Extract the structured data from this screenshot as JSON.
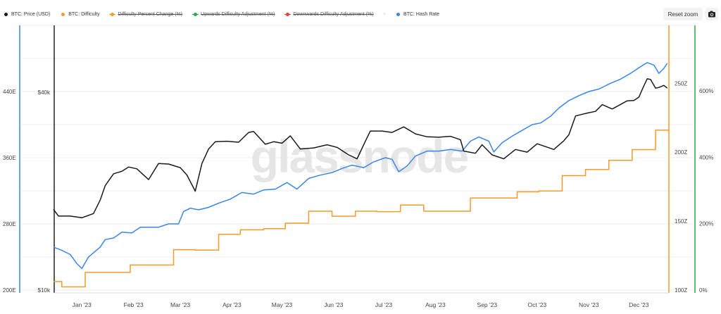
{
  "legend": [
    {
      "label": "BTC: Price (USD)",
      "color": "#1a1a1a",
      "style": "dot",
      "enabled": true
    },
    {
      "label": "BTC: Difficulty",
      "color": "#f59a2b",
      "style": "dot",
      "enabled": true
    },
    {
      "label": "Difficulty Percent Change (%)",
      "color": "#f59a2b",
      "style": "line-dot",
      "enabled": false
    },
    {
      "label": "Upwards Difficulty Adjustment (%)",
      "color": "#2aa84a",
      "style": "line-dot",
      "enabled": false
    },
    {
      "label": "Downwards Difficulty Adjustment (%)",
      "color": "#e2453c",
      "style": "line-dot",
      "enabled": false
    },
    {
      "label": "-",
      "color": "#999999",
      "style": "none",
      "enabled": true
    },
    {
      "label": "BTC: Hash Rate",
      "color": "#3a86e8",
      "style": "dot",
      "enabled": true
    }
  ],
  "controls": {
    "reset_zoom_label": "Reset zoom",
    "camera_icon": "camera-icon"
  },
  "watermark": "glassnode",
  "chart_data": {
    "type": "line",
    "x_labels": [
      "Jan '23",
      "Feb '23",
      "Mar '23",
      "Apr '23",
      "May '23",
      "Jun '23",
      "Jul '23",
      "Aug '23",
      "Sep '23",
      "Oct '23",
      "Nov '23",
      "Dec '23"
    ],
    "x_range": [
      "2022-12-15",
      "2023-12-19"
    ],
    "axes": {
      "hash_rate": {
        "ticks": [
          "200E",
          "280E",
          "360E",
          "440E"
        ],
        "range": [
          200,
          520
        ],
        "color": "#3a86e8"
      },
      "price": {
        "ticks": [
          "$10k",
          "$40k"
        ],
        "range": [
          10000,
          50000
        ],
        "scale": "log"
      },
      "difficulty": {
        "ticks": [
          "100Z",
          "150Z",
          "200Z",
          "250Z"
        ],
        "range": [
          100,
          290
        ],
        "color": "#f59a2b"
      },
      "difficulty_change": {
        "ticks": [
          "0%",
          "200%",
          "400%",
          "600%"
        ],
        "range": [
          0,
          700
        ],
        "color": "#2aa84a"
      }
    },
    "grid": true,
    "series": [
      {
        "name": "BTC: Price (USD)",
        "color": "#1a1a1a",
        "axis": "price",
        "points": [
          [
            "2022-12-15",
            17600
          ],
          [
            "2022-12-18",
            16800
          ],
          [
            "2022-12-25",
            16800
          ],
          [
            "2023-01-01",
            16600
          ],
          [
            "2023-01-08",
            17100
          ],
          [
            "2023-01-12",
            18800
          ],
          [
            "2023-01-15",
            20800
          ],
          [
            "2023-01-20",
            22600
          ],
          [
            "2023-01-25",
            23000
          ],
          [
            "2023-01-29",
            23700
          ],
          [
            "2023-02-03",
            23400
          ],
          [
            "2023-02-10",
            21700
          ],
          [
            "2023-02-16",
            24300
          ],
          [
            "2023-02-22",
            24200
          ],
          [
            "2023-03-01",
            23600
          ],
          [
            "2023-03-05",
            22400
          ],
          [
            "2023-03-10",
            20000
          ],
          [
            "2023-03-14",
            24300
          ],
          [
            "2023-03-18",
            26900
          ],
          [
            "2023-03-22",
            28300
          ],
          [
            "2023-03-29",
            28400
          ],
          [
            "2023-04-05",
            28200
          ],
          [
            "2023-04-11",
            30200
          ],
          [
            "2023-04-14",
            30400
          ],
          [
            "2023-04-21",
            27800
          ],
          [
            "2023-04-26",
            28300
          ],
          [
            "2023-05-01",
            28000
          ],
          [
            "2023-05-06",
            29500
          ],
          [
            "2023-05-12",
            26900
          ],
          [
            "2023-05-20",
            27100
          ],
          [
            "2023-05-28",
            27700
          ],
          [
            "2023-06-03",
            27200
          ],
          [
            "2023-06-10",
            25800
          ],
          [
            "2023-06-15",
            25100
          ],
          [
            "2023-06-20",
            28400
          ],
          [
            "2023-06-23",
            30500
          ],
          [
            "2023-06-30",
            30500
          ],
          [
            "2023-07-06",
            30200
          ],
          [
            "2023-07-13",
            31400
          ],
          [
            "2023-07-20",
            29900
          ],
          [
            "2023-07-27",
            29300
          ],
          [
            "2023-08-03",
            29200
          ],
          [
            "2023-08-10",
            29400
          ],
          [
            "2023-08-16",
            28700
          ],
          [
            "2023-08-18",
            26500
          ],
          [
            "2023-08-25",
            26100
          ],
          [
            "2023-08-29",
            27700
          ],
          [
            "2023-09-04",
            25800
          ],
          [
            "2023-09-11",
            25100
          ],
          [
            "2023-09-18",
            26800
          ],
          [
            "2023-09-25",
            26300
          ],
          [
            "2023-10-01",
            27900
          ],
          [
            "2023-10-11",
            26800
          ],
          [
            "2023-10-17",
            28500
          ],
          [
            "2023-10-20",
            29700
          ],
          [
            "2023-10-24",
            33900
          ],
          [
            "2023-10-31",
            34600
          ],
          [
            "2023-11-05",
            35000
          ],
          [
            "2023-11-09",
            36700
          ],
          [
            "2023-11-15",
            35600
          ],
          [
            "2023-11-24",
            37700
          ],
          [
            "2023-11-28",
            37800
          ],
          [
            "2023-12-01",
            38700
          ],
          [
            "2023-12-04",
            41900
          ],
          [
            "2023-12-06",
            44000
          ],
          [
            "2023-12-08",
            43800
          ],
          [
            "2023-12-11",
            41200
          ],
          [
            "2023-12-13",
            41400
          ],
          [
            "2023-12-16",
            42000
          ],
          [
            "2023-12-18",
            41200
          ]
        ]
      },
      {
        "name": "BTC: Difficulty",
        "color": "#f59a2b",
        "axis": "difficulty",
        "step": true,
        "points": [
          [
            "2022-12-15",
            35.4
          ],
          [
            "2022-12-20",
            35.4
          ],
          [
            "2022-12-20",
            34.1
          ],
          [
            "2023-01-03",
            34.1
          ],
          [
            "2023-01-03",
            37.6
          ],
          [
            "2023-01-16",
            37.6
          ],
          [
            "2023-01-16",
            37.6
          ],
          [
            "2023-01-30",
            37.6
          ],
          [
            "2023-01-30",
            39.4
          ],
          [
            "2023-02-12",
            39.4
          ],
          [
            "2023-02-12",
            39.4
          ],
          [
            "2023-02-25",
            39.4
          ],
          [
            "2023-02-25",
            43.1
          ],
          [
            "2023-03-10",
            43.1
          ],
          [
            "2023-03-10",
            43.0
          ],
          [
            "2023-03-24",
            43.0
          ],
          [
            "2023-03-24",
            46.8
          ],
          [
            "2023-04-06",
            46.8
          ],
          [
            "2023-04-06",
            47.9
          ],
          [
            "2023-04-20",
            47.9
          ],
          [
            "2023-04-20",
            48.2
          ],
          [
            "2023-05-03",
            48.2
          ],
          [
            "2023-05-03",
            49.5
          ],
          [
            "2023-05-17",
            49.5
          ],
          [
            "2023-05-17",
            52.4
          ],
          [
            "2023-05-31",
            52.4
          ],
          [
            "2023-05-31",
            51.2
          ],
          [
            "2023-06-14",
            51.2
          ],
          [
            "2023-06-14",
            52.4
          ],
          [
            "2023-06-27",
            52.4
          ],
          [
            "2023-06-27",
            52.3
          ],
          [
            "2023-07-11",
            52.3
          ],
          [
            "2023-07-11",
            53.9
          ],
          [
            "2023-07-25",
            53.9
          ],
          [
            "2023-07-25",
            52.4
          ],
          [
            "2023-08-08",
            52.4
          ],
          [
            "2023-08-08",
            52.4
          ],
          [
            "2023-08-22",
            52.4
          ],
          [
            "2023-08-22",
            55.6
          ],
          [
            "2023-09-05",
            55.6
          ],
          [
            "2023-09-05",
            55.6
          ],
          [
            "2023-09-19",
            55.6
          ],
          [
            "2023-09-19",
            57.1
          ],
          [
            "2023-10-02",
            57.1
          ],
          [
            "2023-10-02",
            57.3
          ],
          [
            "2023-10-16",
            57.3
          ],
          [
            "2023-10-16",
            61.0
          ],
          [
            "2023-10-30",
            61.0
          ],
          [
            "2023-10-30",
            62.5
          ],
          [
            "2023-11-13",
            62.5
          ],
          [
            "2023-11-13",
            64.7
          ],
          [
            "2023-11-27",
            64.7
          ],
          [
            "2023-11-27",
            67.3
          ],
          [
            "2023-12-11",
            67.3
          ],
          [
            "2023-12-11",
            72.0
          ],
          [
            "2023-12-19",
            72.0
          ]
        ]
      },
      {
        "name": "BTC: Hash Rate",
        "color": "#3a86e8",
        "axis": "hash_rate",
        "points": [
          [
            "2022-12-15",
            252
          ],
          [
            "2022-12-20",
            248
          ],
          [
            "2022-12-25",
            243
          ],
          [
            "2022-12-29",
            232
          ],
          [
            "2023-01-01",
            226
          ],
          [
            "2023-01-05",
            240
          ],
          [
            "2023-01-08",
            245
          ],
          [
            "2023-01-12",
            252
          ],
          [
            "2023-01-15",
            261
          ],
          [
            "2023-01-20",
            263
          ],
          [
            "2023-01-25",
            270
          ],
          [
            "2023-01-31",
            269
          ],
          [
            "2023-02-05",
            276
          ],
          [
            "2023-02-10",
            276
          ],
          [
            "2023-02-16",
            276
          ],
          [
            "2023-02-22",
            280
          ],
          [
            "2023-02-28",
            280
          ],
          [
            "2023-03-03",
            295
          ],
          [
            "2023-03-07",
            299
          ],
          [
            "2023-03-12",
            297
          ],
          [
            "2023-03-18",
            300
          ],
          [
            "2023-03-24",
            305
          ],
          [
            "2023-03-31",
            310
          ],
          [
            "2023-04-07",
            318
          ],
          [
            "2023-04-14",
            316
          ],
          [
            "2023-04-20",
            321
          ],
          [
            "2023-04-27",
            322
          ],
          [
            "2023-05-04",
            330
          ],
          [
            "2023-05-10",
            322
          ],
          [
            "2023-05-17",
            335
          ],
          [
            "2023-05-24",
            339
          ],
          [
            "2023-05-31",
            342
          ],
          [
            "2023-06-06",
            347
          ],
          [
            "2023-06-12",
            351
          ],
          [
            "2023-06-19",
            348
          ],
          [
            "2023-06-25",
            355
          ],
          [
            "2023-07-02",
            360
          ],
          [
            "2023-07-06",
            358
          ],
          [
            "2023-07-10",
            343
          ],
          [
            "2023-07-15",
            350
          ],
          [
            "2023-07-20",
            362
          ],
          [
            "2023-07-27",
            368
          ],
          [
            "2023-08-03",
            368
          ],
          [
            "2023-08-10",
            370
          ],
          [
            "2023-08-17",
            368
          ],
          [
            "2023-08-22",
            380
          ],
          [
            "2023-08-27",
            385
          ],
          [
            "2023-09-02",
            380
          ],
          [
            "2023-09-05",
            367
          ],
          [
            "2023-09-10",
            378
          ],
          [
            "2023-09-16",
            386
          ],
          [
            "2023-09-22",
            393
          ],
          [
            "2023-09-28",
            400
          ],
          [
            "2023-10-03",
            402
          ],
          [
            "2023-10-09",
            410
          ],
          [
            "2023-10-14",
            420
          ],
          [
            "2023-10-20",
            429
          ],
          [
            "2023-10-26",
            435
          ],
          [
            "2023-11-01",
            440
          ],
          [
            "2023-11-07",
            443
          ],
          [
            "2023-11-14",
            450
          ],
          [
            "2023-11-20",
            455
          ],
          [
            "2023-11-26",
            462
          ],
          [
            "2023-12-02",
            470
          ],
          [
            "2023-12-06",
            475
          ],
          [
            "2023-12-10",
            472
          ],
          [
            "2023-12-13",
            462
          ],
          [
            "2023-12-16",
            468
          ],
          [
            "2023-12-18",
            474
          ]
        ]
      }
    ]
  }
}
